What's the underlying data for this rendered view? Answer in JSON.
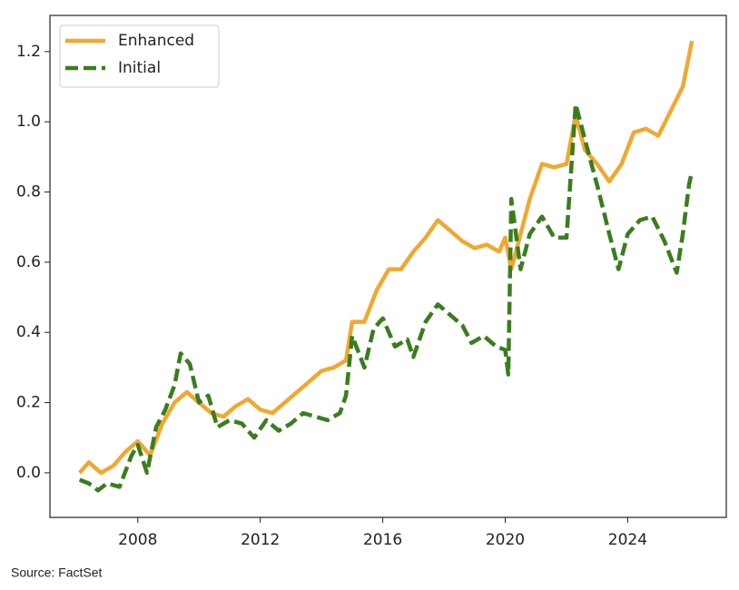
{
  "chart_data": {
    "type": "line",
    "source": "Source: FactSet",
    "xlim": [
      2005.13,
      2027.22
    ],
    "xticks": [
      2008,
      2012,
      2016,
      2020,
      2024
    ],
    "ylim": [
      -0.127,
      1.303
    ],
    "yticks": [
      {
        "value": 0,
        "label": "0.0"
      },
      0.2,
      0.4,
      0.6,
      0.8,
      {
        "value": 1,
        "label": "1.0"
      },
      1.2
    ],
    "legend": "upper left",
    "series": [
      {
        "name": "Enhanced",
        "color": "#f0a830",
        "dash": "solid",
        "x": [
          2006.1,
          2006.4,
          2006.8,
          2007.2,
          2007.6,
          2008.0,
          2008.4,
          2008.8,
          2009.2,
          2009.6,
          2010.0,
          2010.4,
          2010.8,
          2011.2,
          2011.6,
          2012.0,
          2012.4,
          2012.8,
          2013.2,
          2013.6,
          2014.0,
          2014.4,
          2014.8,
          2015.0,
          2015.4,
          2015.8,
          2016.2,
          2016.6,
          2017.0,
          2017.4,
          2017.8,
          2018.2,
          2018.6,
          2019.0,
          2019.4,
          2019.8,
          2020.0,
          2020.2,
          2020.5,
          2020.8,
          2021.2,
          2021.6,
          2022.0,
          2022.3,
          2022.6,
          2023.0,
          2023.4,
          2023.8,
          2024.2,
          2024.6,
          2025.0,
          2025.4,
          2025.8,
          2026.1
        ],
        "values": [
          0.0,
          0.03,
          0.0,
          0.02,
          0.06,
          0.09,
          0.05,
          0.14,
          0.2,
          0.23,
          0.2,
          0.17,
          0.16,
          0.19,
          0.21,
          0.18,
          0.17,
          0.2,
          0.23,
          0.26,
          0.29,
          0.3,
          0.32,
          0.43,
          0.43,
          0.52,
          0.58,
          0.58,
          0.63,
          0.67,
          0.72,
          0.69,
          0.66,
          0.64,
          0.65,
          0.63,
          0.67,
          0.58,
          0.68,
          0.78,
          0.88,
          0.87,
          0.88,
          1.02,
          0.92,
          0.88,
          0.83,
          0.88,
          0.97,
          0.98,
          0.96,
          1.03,
          1.1,
          1.23
        ]
      },
      {
        "name": "Initial",
        "color": "#3a7d1e",
        "dash": "dashed",
        "x": [
          2006.1,
          2006.4,
          2006.7,
          2007.0,
          2007.4,
          2007.8,
          2008.0,
          2008.3,
          2008.6,
          2008.9,
          2009.2,
          2009.4,
          2009.7,
          2010.0,
          2010.3,
          2010.6,
          2011.0,
          2011.4,
          2011.8,
          2012.2,
          2012.6,
          2013.0,
          2013.4,
          2013.8,
          2014.2,
          2014.6,
          2014.8,
          2015.0,
          2015.4,
          2015.7,
          2016.0,
          2016.4,
          2016.8,
          2017.0,
          2017.4,
          2017.8,
          2018.2,
          2018.6,
          2018.9,
          2019.3,
          2019.7,
          2020.0,
          2020.1,
          2020.2,
          2020.5,
          2020.8,
          2021.2,
          2021.6,
          2022.0,
          2022.3,
          2022.6,
          2023.0,
          2023.4,
          2023.7,
          2024.0,
          2024.4,
          2024.8,
          2025.2,
          2025.6,
          2025.8,
          2026.0,
          2026.1
        ],
        "values": [
          -0.02,
          -0.03,
          -0.05,
          -0.03,
          -0.04,
          0.05,
          0.08,
          0.0,
          0.13,
          0.18,
          0.25,
          0.34,
          0.31,
          0.2,
          0.22,
          0.13,
          0.15,
          0.14,
          0.1,
          0.15,
          0.12,
          0.14,
          0.17,
          0.16,
          0.15,
          0.17,
          0.22,
          0.39,
          0.3,
          0.41,
          0.44,
          0.36,
          0.38,
          0.33,
          0.43,
          0.48,
          0.45,
          0.42,
          0.37,
          0.39,
          0.36,
          0.35,
          0.28,
          0.78,
          0.58,
          0.68,
          0.73,
          0.67,
          0.67,
          1.05,
          0.95,
          0.82,
          0.68,
          0.58,
          0.68,
          0.72,
          0.73,
          0.66,
          0.57,
          0.68,
          0.82,
          0.86
        ]
      }
    ]
  }
}
